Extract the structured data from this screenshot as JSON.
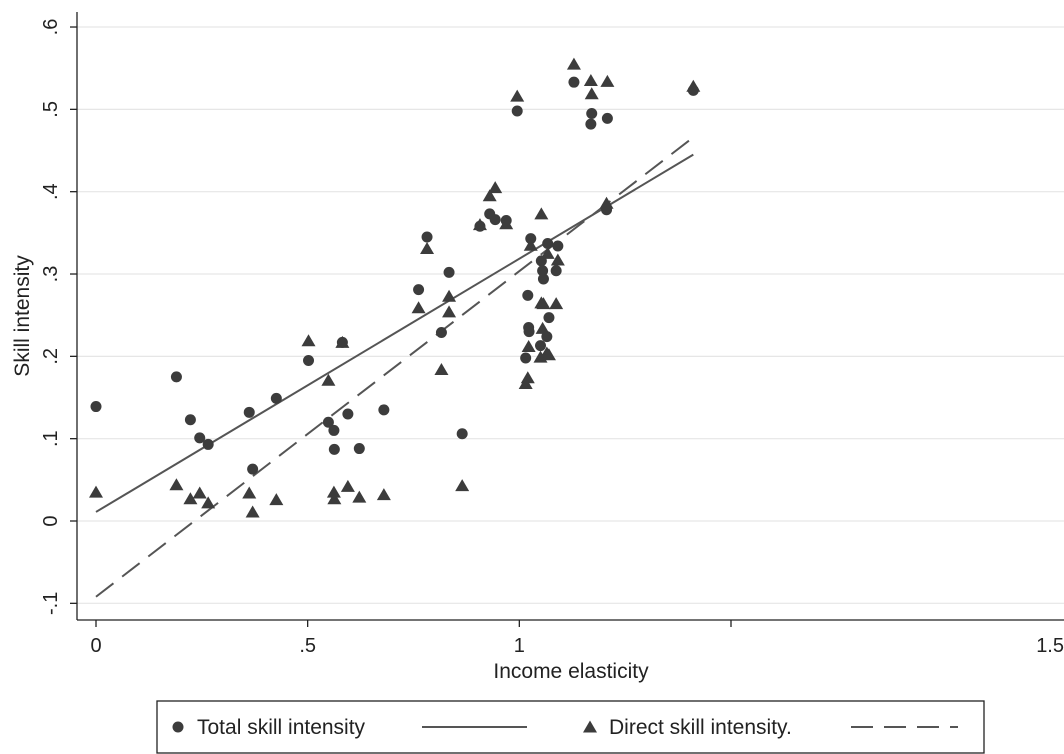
{
  "chart_data": {
    "type": "scatter",
    "xlabel": "Income elasticity",
    "ylabel": "Skill intensity",
    "xlim": [
      0,
      1.5
    ],
    "ylim": [
      -0.1,
      0.6
    ],
    "x_ticks": [
      {
        "v": 0,
        "label": "0"
      },
      {
        "v": 0.5,
        "label": ".5"
      },
      {
        "v": 1,
        "label": "1"
      },
      {
        "v": 1.5,
        "label": "1.5"
      }
    ],
    "y_ticks": [
      {
        "v": -0.1,
        "label": "-.1"
      },
      {
        "v": 0,
        "label": "0"
      },
      {
        "v": 0.1,
        "label": ".1"
      },
      {
        "v": 0.2,
        "label": ".2"
      },
      {
        "v": 0.3,
        "label": ".3"
      },
      {
        "v": 0.4,
        "label": ".4"
      },
      {
        "v": 0.5,
        "label": ".5"
      },
      {
        "v": 0.6,
        "label": ".6"
      }
    ],
    "grid": true,
    "legend_position": "bottom",
    "colors": {
      "marker": "#3c3c3c",
      "line": "#555555",
      "grid": "#e6e6e6"
    },
    "series": [
      {
        "name": "Total skill intensity",
        "marker": "circle",
        "points": [
          [
            0.0,
            0.139
          ],
          [
            0.19,
            0.175
          ],
          [
            0.223,
            0.123
          ],
          [
            0.245,
            0.101
          ],
          [
            0.265,
            0.093
          ],
          [
            0.362,
            0.132
          ],
          [
            0.37,
            0.063
          ],
          [
            0.426,
            0.149
          ],
          [
            0.502,
            0.195
          ],
          [
            0.549,
            0.12
          ],
          [
            0.562,
            0.11
          ],
          [
            0.563,
            0.087
          ],
          [
            0.582,
            0.217
          ],
          [
            0.595,
            0.13
          ],
          [
            0.622,
            0.088
          ],
          [
            0.68,
            0.135
          ],
          [
            0.762,
            0.281
          ],
          [
            0.782,
            0.345
          ],
          [
            0.816,
            0.229
          ],
          [
            0.834,
            0.302
          ],
          [
            0.865,
            0.106
          ],
          [
            0.907,
            0.358
          ],
          [
            0.93,
            0.373
          ],
          [
            0.943,
            0.366
          ],
          [
            0.969,
            0.365
          ],
          [
            0.995,
            0.498
          ],
          [
            1.015,
            0.198
          ],
          [
            1.02,
            0.274
          ],
          [
            1.022,
            0.235
          ],
          [
            1.023,
            0.23
          ],
          [
            1.027,
            0.343
          ],
          [
            1.05,
            0.213
          ],
          [
            1.052,
            0.316
          ],
          [
            1.055,
            0.304
          ],
          [
            1.057,
            0.294
          ],
          [
            1.065,
            0.224
          ],
          [
            1.067,
            0.337
          ],
          [
            1.07,
            0.247
          ],
          [
            1.087,
            0.304
          ],
          [
            1.091,
            0.334
          ],
          [
            1.129,
            0.533
          ],
          [
            1.169,
            0.482
          ],
          [
            1.171,
            0.495
          ],
          [
            1.206,
            0.378
          ],
          [
            1.208,
            0.489
          ],
          [
            1.411,
            0.523
          ]
        ],
        "fit_line": {
          "x": [
            0,
            1.411
          ],
          "y": [
            0.011,
            0.445
          ]
        }
      },
      {
        "name": "Direct skill intensity.",
        "marker": "triangle",
        "points": [
          [
            0.0,
            0.035
          ],
          [
            0.19,
            0.044
          ],
          [
            0.223,
            0.027
          ],
          [
            0.245,
            0.034
          ],
          [
            0.265,
            0.022
          ],
          [
            0.362,
            0.034
          ],
          [
            0.37,
            0.011
          ],
          [
            0.426,
            0.026
          ],
          [
            0.502,
            0.219
          ],
          [
            0.549,
            0.171
          ],
          [
            0.562,
            0.035
          ],
          [
            0.563,
            0.027
          ],
          [
            0.582,
            0.217
          ],
          [
            0.595,
            0.042
          ],
          [
            0.622,
            0.029
          ],
          [
            0.68,
            0.032
          ],
          [
            0.762,
            0.259
          ],
          [
            0.782,
            0.331
          ],
          [
            0.816,
            0.184
          ],
          [
            0.834,
            0.273
          ],
          [
            0.834,
            0.254
          ],
          [
            0.865,
            0.043
          ],
          [
            0.907,
            0.36
          ],
          [
            0.93,
            0.395
          ],
          [
            0.943,
            0.405
          ],
          [
            0.969,
            0.361
          ],
          [
            0.995,
            0.516
          ],
          [
            1.015,
            0.167
          ],
          [
            1.02,
            0.174
          ],
          [
            1.022,
            0.212
          ],
          [
            1.027,
            0.335
          ],
          [
            1.05,
            0.199
          ],
          [
            1.052,
            0.265
          ],
          [
            1.052,
            0.373
          ],
          [
            1.055,
            0.234
          ],
          [
            1.057,
            0.264
          ],
          [
            1.065,
            0.204
          ],
          [
            1.067,
            0.325
          ],
          [
            1.07,
            0.202
          ],
          [
            1.087,
            0.264
          ],
          [
            1.091,
            0.317
          ],
          [
            1.129,
            0.555
          ],
          [
            1.169,
            0.535
          ],
          [
            1.171,
            0.519
          ],
          [
            1.206,
            0.386
          ],
          [
            1.208,
            0.534
          ],
          [
            1.411,
            0.528
          ]
        ],
        "fit_line": {
          "x": [
            0,
            1.411
          ],
          "y": [
            -0.092,
            0.466
          ]
        }
      }
    ]
  }
}
